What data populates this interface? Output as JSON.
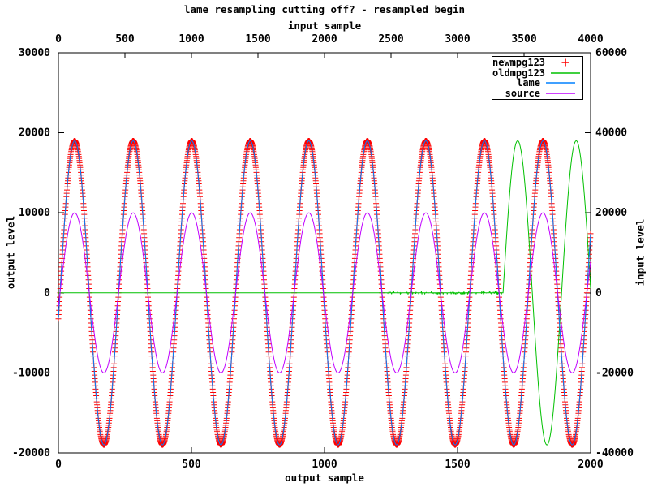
{
  "chart_data": {
    "type": "line",
    "title": "lame resampling cutting off? - resampled begin",
    "background_color": "#ffffff",
    "grid": false,
    "legend": {
      "position": "top-right",
      "border": true
    },
    "x_top": {
      "label": "input sample",
      "range": [
        0,
        4000
      ],
      "ticks": [
        0,
        500,
        1000,
        1500,
        2000,
        2500,
        3000,
        3500,
        4000
      ]
    },
    "x_bottom": {
      "label": "output sample",
      "range": [
        0,
        2000
      ],
      "ticks": [
        0,
        500,
        1000,
        1500,
        2000
      ]
    },
    "y_left": {
      "label": "output level",
      "range": [
        -20000,
        30000
      ],
      "ticks": [
        30000,
        20000,
        10000,
        0,
        -10000,
        -20000
      ]
    },
    "y_right": {
      "label": "input level",
      "range": [
        -40000,
        60000
      ],
      "ticks": [
        60000,
        40000,
        20000,
        0,
        -20000,
        -40000
      ]
    },
    "series": [
      {
        "name": "newmpg123",
        "color": "#ff0000",
        "style": "points",
        "marker": "+",
        "x_axis": "x_bottom",
        "y_axis": "y_left",
        "wave": {
          "type": "sine",
          "amplitude": 19000,
          "period": 220,
          "zero_cross_up": 6,
          "x_start": 0,
          "x_end": 2000,
          "marker_step": 1
        }
      },
      {
        "name": "oldmpg123",
        "color": "#00c000",
        "style": "line",
        "x_axis": "x_bottom",
        "y_axis": "y_left",
        "wave": {
          "type": "flat_then_sine",
          "flat_value": 0,
          "flat_from": 0,
          "noise_from": 1230,
          "noise_to": 1666,
          "noise_amplitude": 200,
          "amplitude": 19000,
          "period": 220,
          "zero_cross_up": 1671,
          "x_start": 0,
          "x_end": 2000,
          "step": 1
        }
      },
      {
        "name": "lame",
        "color": "#0080ff",
        "style": "line",
        "x_axis": "x_bottom",
        "y_axis": "y_left",
        "wave": {
          "type": "sine",
          "amplitude": 19000,
          "period": 220,
          "zero_cross_up": 6,
          "x_start": 0,
          "x_end": 2000,
          "step": 2
        }
      },
      {
        "name": "source",
        "color": "#c000ff",
        "style": "line",
        "x_axis": "x_top",
        "y_axis": "y_right",
        "wave": {
          "type": "sine",
          "amplitude": 20000,
          "period": 440,
          "zero_cross_up": 12,
          "x_start": 0,
          "x_end": 4000,
          "step": 4
        }
      }
    ]
  }
}
